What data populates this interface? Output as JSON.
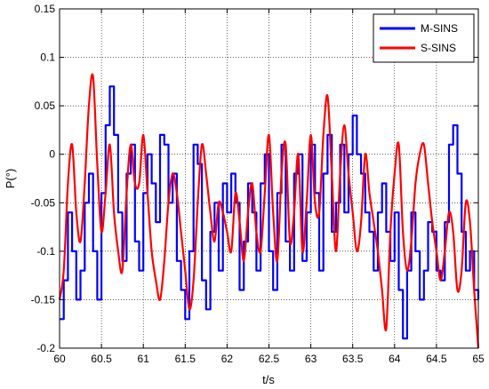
{
  "chart_data": {
    "type": "line",
    "title": "",
    "xlabel": "t/s",
    "ylabel": "P(°)",
    "xlim": [
      60,
      65
    ],
    "ylim": [
      -0.2,
      0.15
    ],
    "grid": true,
    "legend_position": "top-right",
    "x_ticks": [
      60,
      60.5,
      61,
      61.5,
      62,
      62.5,
      63,
      63.5,
      64,
      64.5,
      65
    ],
    "x_tick_labels": [
      "60",
      "60.5",
      "61",
      "61.5",
      "62",
      "62.5",
      "63",
      "63.5",
      "64",
      "64.5",
      "65"
    ],
    "y_ticks": [
      -0.2,
      -0.15,
      -0.1,
      -0.05,
      0,
      0.05,
      0.1,
      0.15
    ],
    "y_tick_labels": [
      "-0.2",
      "-0.15",
      "-0.1",
      "-0.05",
      "0",
      "0.05",
      "0.1",
      "0.15"
    ],
    "series": [
      {
        "name": "M-SINS",
        "color": "#0000ff",
        "step": true,
        "x": [
          60.0,
          60.05,
          60.1,
          60.15,
          60.2,
          60.25,
          60.3,
          60.35,
          60.4,
          60.45,
          60.5,
          60.55,
          60.6,
          60.65,
          60.7,
          60.75,
          60.8,
          60.85,
          60.9,
          60.95,
          61.0,
          61.05,
          61.1,
          61.15,
          61.2,
          61.25,
          61.3,
          61.35,
          61.4,
          61.45,
          61.5,
          61.55,
          61.6,
          61.65,
          61.7,
          61.75,
          61.8,
          61.85,
          61.9,
          61.95,
          62.0,
          62.05,
          62.1,
          62.15,
          62.2,
          62.25,
          62.3,
          62.35,
          62.4,
          62.45,
          62.5,
          62.55,
          62.6,
          62.65,
          62.7,
          62.75,
          62.8,
          62.85,
          62.9,
          62.95,
          63.0,
          63.05,
          63.1,
          63.15,
          63.2,
          63.25,
          63.3,
          63.35,
          63.4,
          63.45,
          63.5,
          63.55,
          63.6,
          63.65,
          63.7,
          63.75,
          63.8,
          63.85,
          63.9,
          63.95,
          64.0,
          64.05,
          64.1,
          64.15,
          64.2,
          64.25,
          64.3,
          64.35,
          64.4,
          64.45,
          64.5,
          64.55,
          64.6,
          64.65,
          64.7,
          64.75,
          64.8,
          64.85,
          64.9,
          64.95,
          65.0
        ],
        "y": [
          -0.17,
          -0.13,
          -0.06,
          -0.1,
          -0.15,
          -0.12,
          -0.05,
          -0.02,
          -0.1,
          -0.15,
          -0.04,
          0.03,
          0.07,
          0.02,
          -0.06,
          -0.11,
          -0.02,
          0.01,
          -0.09,
          -0.12,
          -0.04,
          0.0,
          -0.03,
          -0.07,
          0.02,
          0.01,
          -0.05,
          -0.02,
          -0.11,
          -0.14,
          -0.17,
          -0.1,
          0.01,
          -0.01,
          -0.13,
          -0.16,
          -0.08,
          -0.05,
          -0.12,
          -0.03,
          -0.06,
          -0.02,
          -0.05,
          -0.14,
          -0.09,
          -0.03,
          -0.06,
          -0.12,
          -0.03,
          0.0,
          -0.1,
          -0.14,
          -0.04,
          0.01,
          -0.09,
          -0.12,
          -0.02,
          0.0,
          -0.11,
          -0.06,
          0.01,
          -0.04,
          -0.12,
          -0.02,
          0.02,
          -0.08,
          -0.05,
          0.01,
          -0.06,
          0.0,
          0.04,
          0.0,
          -0.02,
          -0.06,
          -0.08,
          -0.12,
          -0.06,
          -0.03,
          -0.08,
          -0.11,
          -0.06,
          -0.14,
          -0.19,
          -0.12,
          -0.06,
          -0.1,
          -0.15,
          -0.12,
          -0.07,
          -0.08,
          -0.12,
          -0.13,
          -0.07,
          0.01,
          0.03,
          -0.02,
          -0.08,
          -0.12,
          -0.1,
          -0.14,
          -0.15
        ]
      },
      {
        "name": "S-SINS",
        "color": "#ff0000",
        "step": false,
        "x": [
          60.0,
          60.05,
          60.1,
          60.15,
          60.2,
          60.25,
          60.3,
          60.35,
          60.4,
          60.45,
          60.5,
          60.55,
          60.6,
          60.65,
          60.7,
          60.75,
          60.8,
          60.85,
          60.9,
          60.95,
          61.0,
          61.05,
          61.1,
          61.15,
          61.2,
          61.25,
          61.3,
          61.35,
          61.4,
          61.45,
          61.5,
          61.55,
          61.6,
          61.65,
          61.7,
          61.75,
          61.8,
          61.85,
          61.9,
          61.95,
          62.0,
          62.05,
          62.1,
          62.15,
          62.2,
          62.25,
          62.3,
          62.35,
          62.4,
          62.45,
          62.5,
          62.55,
          62.6,
          62.65,
          62.7,
          62.75,
          62.8,
          62.85,
          62.9,
          62.95,
          63.0,
          63.05,
          63.1,
          63.15,
          63.2,
          63.25,
          63.3,
          63.35,
          63.4,
          63.45,
          63.5,
          63.55,
          63.6,
          63.65,
          63.7,
          63.75,
          63.8,
          63.85,
          63.9,
          63.95,
          64.0,
          64.05,
          64.1,
          64.15,
          64.2,
          64.25,
          64.3,
          64.35,
          64.4,
          64.45,
          64.5,
          64.55,
          64.6,
          64.65,
          64.7,
          64.75,
          64.8,
          64.85,
          64.9,
          64.95,
          65.0
        ],
        "y": [
          -0.15,
          -0.12,
          -0.03,
          0.01,
          -0.06,
          -0.09,
          -0.03,
          0.05,
          0.08,
          -0.01,
          -0.08,
          -0.04,
          0.01,
          -0.06,
          -0.1,
          -0.12,
          -0.04,
          0.01,
          -0.03,
          -0.03,
          0.02,
          -0.04,
          -0.1,
          -0.13,
          -0.15,
          -0.11,
          -0.05,
          -0.02,
          -0.04,
          -0.08,
          -0.12,
          -0.16,
          -0.13,
          -0.05,
          0.01,
          -0.02,
          -0.06,
          -0.09,
          -0.05,
          -0.06,
          -0.08,
          -0.1,
          -0.04,
          -0.07,
          -0.11,
          -0.06,
          -0.03,
          -0.08,
          -0.1,
          -0.04,
          0.02,
          -0.06,
          -0.11,
          -0.02,
          0.01,
          -0.09,
          -0.06,
          0.0,
          -0.1,
          -0.05,
          0.02,
          -0.05,
          -0.06,
          0.02,
          0.06,
          -0.02,
          -0.1,
          -0.02,
          0.03,
          -0.02,
          -0.06,
          -0.1,
          -0.07,
          0.0,
          -0.04,
          -0.07,
          -0.1,
          -0.14,
          -0.18,
          -0.08,
          -0.02,
          0.01,
          -0.08,
          -0.12,
          -0.09,
          -0.03,
          0.0,
          0.01,
          -0.03,
          -0.07,
          -0.1,
          -0.13,
          -0.1,
          -0.06,
          -0.08,
          -0.14,
          -0.12,
          -0.05,
          -0.07,
          -0.14,
          -0.2
        ]
      }
    ]
  }
}
